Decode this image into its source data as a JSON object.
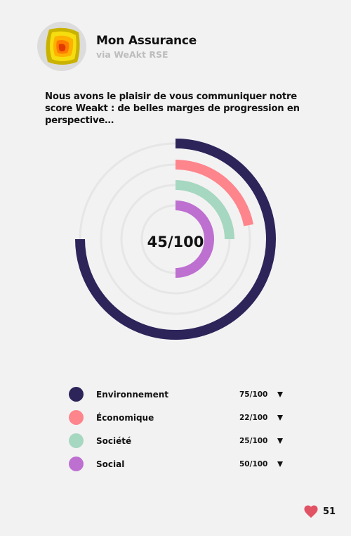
{
  "brand": {
    "name": "Mon Assurance",
    "subtitle": "via WeAkt RSE"
  },
  "intro": "Nous avons le plaisir de vous communiquer notre score Weakt : de belles marges de progression en perspective…",
  "chart_data": {
    "type": "radial-bar",
    "center_label": "45/100",
    "max": 100,
    "series": [
      {
        "name": "Environnement",
        "value": 75,
        "label": "75/100",
        "color": "#2d2459"
      },
      {
        "name": "Économique",
        "value": 22,
        "label": "22/100",
        "color": "#fe858c"
      },
      {
        "name": "Société",
        "value": 25,
        "label": "25/100",
        "color": "#a6d7c0"
      },
      {
        "name": "Social",
        "value": 50,
        "label": "50/100",
        "color": "#bd70d0"
      }
    ],
    "track_color": "#e6e6e6"
  },
  "likes": {
    "count": "51",
    "icon": "heart-icon",
    "color": "#e25265"
  },
  "legend": {
    "expand_icon": "triangle-down-icon"
  }
}
